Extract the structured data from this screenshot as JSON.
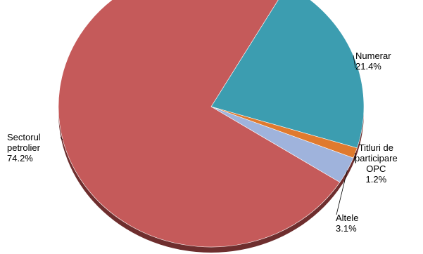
{
  "chart_data": {
    "type": "pie",
    "title": "",
    "slices": [
      {
        "label_lines": [
          "Numerar"
        ],
        "value_label": "21.4%",
        "value": 21.4,
        "color": "#3c9db0"
      },
      {
        "label_lines": [
          "Titluri de",
          "participare",
          "OPC"
        ],
        "value_label": "1.2%",
        "value": 1.2,
        "color": "#e07a2e"
      },
      {
        "label_lines": [
          "Altele"
        ],
        "value_label": "3.1%",
        "value": 3.1,
        "color": "#9fb3dc"
      },
      {
        "label_lines": [
          "Sectorul",
          "petrolier"
        ],
        "value_label": "74.2%",
        "value": 74.2,
        "color": "#c55a5a"
      }
    ]
  }
}
